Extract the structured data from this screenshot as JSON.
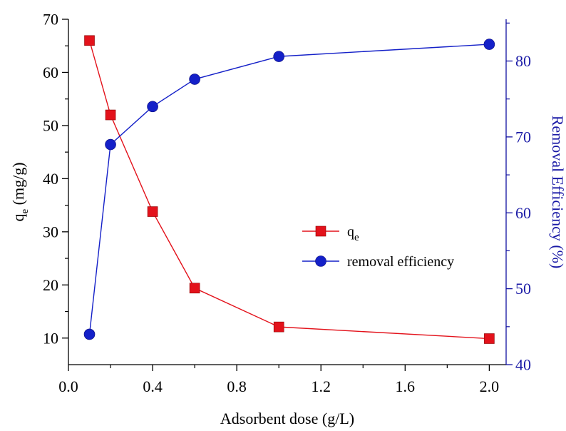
{
  "chart_data": {
    "type": "line",
    "title": "",
    "xlabel": "Adsorbent dose (g/L)",
    "ylabel_left": "q",
    "ylabel_left_sub": "e",
    "ylabel_left_unit": " (mg/g)",
    "ylabel_right": "Removal Efficiency (%)",
    "xlim": [
      0.0,
      2.08
    ],
    "ylim_left": [
      5,
      70
    ],
    "ylim_right": [
      40,
      85.5
    ],
    "x_ticks": [
      "0.0",
      "0.4",
      "0.8",
      "1.2",
      "1.6",
      "2.0"
    ],
    "y_ticks_left": [
      "10",
      "20",
      "30",
      "40",
      "50",
      "60",
      "70"
    ],
    "y_ticks_right": [
      "40",
      "50",
      "60",
      "70",
      "80"
    ],
    "grid": false,
    "legend_position": "center-right",
    "series": [
      {
        "name": "q",
        "name_sub": "e",
        "axis": "left",
        "marker": "square",
        "color": "#e3121b",
        "x": [
          0.1,
          0.2,
          0.4,
          0.6,
          1.0,
          2.0
        ],
        "y": [
          66.0,
          52.0,
          33.8,
          19.4,
          12.1,
          9.9
        ]
      },
      {
        "name": "removal efficiency",
        "axis": "right",
        "marker": "circle",
        "color": "#1420c8",
        "x": [
          0.1,
          0.2,
          0.4,
          0.6,
          1.0,
          2.0
        ],
        "y": [
          44.0,
          69.0,
          74.0,
          77.6,
          80.6,
          82.2
        ]
      }
    ]
  }
}
